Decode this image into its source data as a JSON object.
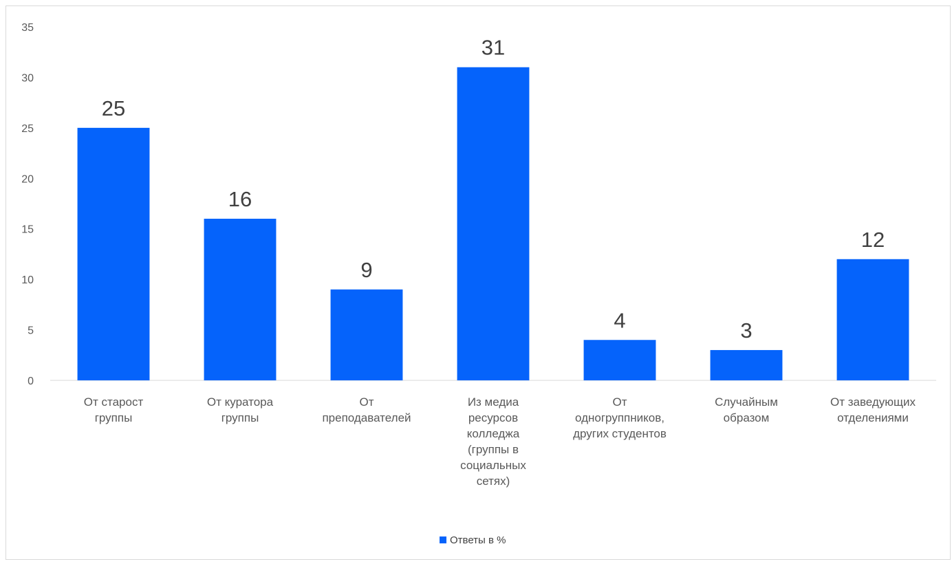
{
  "chart_data": {
    "type": "bar",
    "title": "",
    "xlabel": "",
    "ylabel": "",
    "ylim": [
      0,
      35
    ],
    "yticks": [
      0,
      5,
      10,
      15,
      20,
      25,
      30,
      35
    ],
    "grid": false,
    "legend_position": "bottom",
    "categories": [
      [
        "От старост",
        "группы"
      ],
      [
        "От куратора",
        "группы"
      ],
      [
        "От",
        "преподавателей"
      ],
      [
        "Из медиа",
        "ресурсов",
        "колледжа",
        "(группы в",
        "социальных",
        "сетях)"
      ],
      [
        "От",
        "одногруппников,",
        "других студентов"
      ],
      [
        "Случайным",
        "образом"
      ],
      [
        "От заведующих",
        "отделениями"
      ]
    ],
    "series": [
      {
        "name": "Ответы в %",
        "color": "#0563fb",
        "values": [
          25,
          16,
          9,
          31,
          4,
          3,
          12
        ]
      }
    ]
  }
}
